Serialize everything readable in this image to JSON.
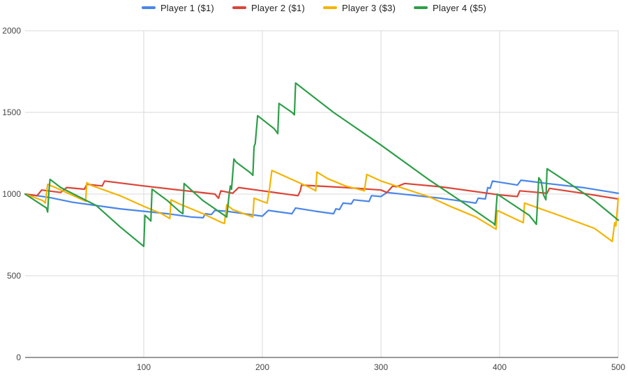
{
  "chart_data": {
    "type": "line",
    "title": "",
    "xlabel": "",
    "ylabel": "",
    "xlim": [
      0,
      500
    ],
    "ylim": [
      0,
      2000
    ],
    "x_ticks": [
      "100",
      "200",
      "300",
      "400",
      "500"
    ],
    "y_ticks": [
      "0",
      "500",
      "1000",
      "1500",
      "2000"
    ],
    "grid": true,
    "legend_position": "top",
    "series": [
      {
        "name": "Player 1 ($1)",
        "color": "#4a86e8",
        "points": [
          [
            0,
            1000
          ],
          [
            20,
            980
          ],
          [
            40,
            950
          ],
          [
            60,
            930
          ],
          [
            80,
            910
          ],
          [
            100,
            895
          ],
          [
            120,
            880
          ],
          [
            140,
            860
          ],
          [
            150,
            855
          ],
          [
            152,
            880
          ],
          [
            157,
            875
          ],
          [
            160,
            900
          ],
          [
            170,
            895
          ],
          [
            190,
            875
          ],
          [
            200,
            865
          ],
          [
            205,
            900
          ],
          [
            225,
            880
          ],
          [
            228,
            915
          ],
          [
            245,
            895
          ],
          [
            260,
            880
          ],
          [
            262,
            910
          ],
          [
            265,
            905
          ],
          [
            268,
            945
          ],
          [
            275,
            940
          ],
          [
            277,
            965
          ],
          [
            290,
            955
          ],
          [
            292,
            990
          ],
          [
            300,
            985
          ],
          [
            305,
            1010
          ],
          [
            350,
            975
          ],
          [
            380,
            945
          ],
          [
            382,
            975
          ],
          [
            388,
            970
          ],
          [
            390,
            1040
          ],
          [
            392,
            1035
          ],
          [
            394,
            1080
          ],
          [
            415,
            1055
          ],
          [
            418,
            1085
          ],
          [
            440,
            1065
          ],
          [
            470,
            1040
          ],
          [
            500,
            1005
          ]
        ]
      },
      {
        "name": "Player 2 ($1)",
        "color": "#db4437",
        "points": [
          [
            0,
            1000
          ],
          [
            10,
            990
          ],
          [
            14,
            1025
          ],
          [
            30,
            1010
          ],
          [
            35,
            1040
          ],
          [
            50,
            1030
          ],
          [
            52,
            1060
          ],
          [
            65,
            1050
          ],
          [
            67,
            1080
          ],
          [
            100,
            1050
          ],
          [
            130,
            1025
          ],
          [
            160,
            1000
          ],
          [
            163,
            975
          ],
          [
            165,
            1020
          ],
          [
            175,
            1005
          ],
          [
            180,
            1040
          ],
          [
            200,
            1020
          ],
          [
            230,
            990
          ],
          [
            232,
            1020
          ],
          [
            233,
            1055
          ],
          [
            270,
            1040
          ],
          [
            300,
            1025
          ],
          [
            305,
            1010
          ],
          [
            310,
            1050
          ],
          [
            313,
            1045
          ],
          [
            320,
            1065
          ],
          [
            350,
            1045
          ],
          [
            390,
            1005
          ],
          [
            400,
            995
          ],
          [
            415,
            985
          ],
          [
            417,
            1020
          ],
          [
            440,
            1005
          ],
          [
            442,
            1035
          ],
          [
            470,
            1005
          ],
          [
            500,
            970
          ]
        ]
      },
      {
        "name": "Player 3 ($3)",
        "color": "#f4b400",
        "points": [
          [
            0,
            1000
          ],
          [
            15,
            960
          ],
          [
            17,
            945
          ],
          [
            19,
            1060
          ],
          [
            22,
            1050
          ],
          [
            24,
            1045
          ],
          [
            50,
            960
          ],
          [
            51,
            955
          ],
          [
            52,
            1070
          ],
          [
            55,
            1055
          ],
          [
            80,
            990
          ],
          [
            100,
            925
          ],
          [
            115,
            880
          ],
          [
            122,
            850
          ],
          [
            123,
            965
          ],
          [
            130,
            940
          ],
          [
            150,
            880
          ],
          [
            166,
            825
          ],
          [
            168,
            820
          ],
          [
            170,
            935
          ],
          [
            175,
            905
          ],
          [
            192,
            860
          ],
          [
            193,
            975
          ],
          [
            200,
            955
          ],
          [
            204,
            945
          ],
          [
            206,
            1030
          ],
          [
            208,
            1145
          ],
          [
            240,
            1040
          ],
          [
            245,
            1020
          ],
          [
            246,
            1135
          ],
          [
            255,
            1095
          ],
          [
            270,
            1050
          ],
          [
            286,
            1020
          ],
          [
            288,
            1120
          ],
          [
            300,
            1080
          ],
          [
            340,
            985
          ],
          [
            360,
            920
          ],
          [
            380,
            860
          ],
          [
            397,
            785
          ],
          [
            398,
            900
          ],
          [
            420,
            825
          ],
          [
            421,
            945
          ],
          [
            450,
            870
          ],
          [
            480,
            790
          ],
          [
            495,
            710
          ],
          [
            497,
            825
          ],
          [
            498,
            805
          ],
          [
            500,
            975
          ]
        ]
      },
      {
        "name": "Player 4 ($5)",
        "color": "#2e9e48",
        "points": [
          [
            0,
            1000
          ],
          [
            18,
            915
          ],
          [
            19,
            890
          ],
          [
            20,
            1010
          ],
          [
            21,
            1090
          ],
          [
            30,
            1040
          ],
          [
            60,
            930
          ],
          [
            80,
            800
          ],
          [
            100,
            680
          ],
          [
            101,
            870
          ],
          [
            104,
            850
          ],
          [
            106,
            835
          ],
          [
            107,
            1030
          ],
          [
            120,
            960
          ],
          [
            130,
            895
          ],
          [
            133,
            880
          ],
          [
            134,
            1065
          ],
          [
            150,
            960
          ],
          [
            170,
            860
          ],
          [
            172,
            1000
          ],
          [
            173,
            1050
          ],
          [
            174,
            1030
          ],
          [
            176,
            1215
          ],
          [
            178,
            1195
          ],
          [
            190,
            1130
          ],
          [
            192,
            1115
          ],
          [
            193,
            1290
          ],
          [
            194,
            1310
          ],
          [
            196,
            1480
          ],
          [
            210,
            1400
          ],
          [
            213,
            1370
          ],
          [
            214,
            1555
          ],
          [
            225,
            1500
          ],
          [
            227,
            1485
          ],
          [
            228,
            1680
          ],
          [
            260,
            1500
          ],
          [
            300,
            1300
          ],
          [
            340,
            1090
          ],
          [
            375,
            920
          ],
          [
            395,
            820
          ],
          [
            396,
            810
          ],
          [
            398,
            1000
          ],
          [
            425,
            870
          ],
          [
            431,
            815
          ],
          [
            433,
            1100
          ],
          [
            435,
            1080
          ],
          [
            437,
            995
          ],
          [
            439,
            965
          ],
          [
            440,
            1155
          ],
          [
            460,
            1060
          ],
          [
            480,
            960
          ],
          [
            500,
            840
          ]
        ]
      }
    ]
  }
}
